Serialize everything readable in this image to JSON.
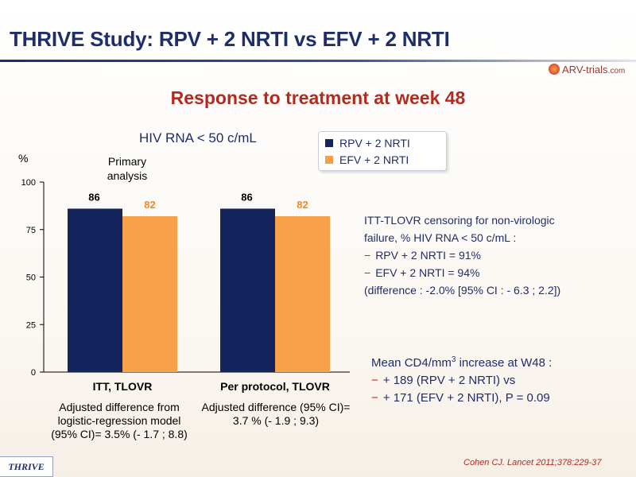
{
  "header": {
    "title": "THRIVE Study: RPV + 2 NRTI vs EFV + 2 NRTI",
    "logo_text": "ARV-trials",
    "logo_domain": ".com"
  },
  "subtitle": "Response to treatment at week 48",
  "chart_data": {
    "type": "bar",
    "title": "HIV RNA < 50 c/mL",
    "ylabel": "%",
    "ylim": [
      0,
      100
    ],
    "yticks": [
      0,
      25,
      50,
      75,
      100
    ],
    "annotation": "Primary analysis",
    "categories": [
      "ITT, TLOVR",
      "Per protocol, TLOVR"
    ],
    "series": [
      {
        "name": "RPV + 2 NRTI",
        "values": [
          86,
          86
        ],
        "color": "#14245c",
        "label_color": "#000000"
      },
      {
        "name": "EFV + 2 NRTI",
        "values": [
          82,
          82
        ],
        "color": "#f7a14a",
        "label_color": "#f08a24"
      }
    ],
    "legend_position": "top-right",
    "grid": false,
    "notes": [
      "Adjusted difference from logistic-regression model (95% CI)= 3.5% (- 1.7 ; 8.8)",
      "Adjusted difference (95% CI)= 3.7 % (- 1.9 ; 9.3)"
    ]
  },
  "itt_censoring": {
    "line1": "ITT-TLOVR censoring for non-virologic",
    "line2": "failure, % HIV RNA < 50 c/mL :",
    "item1": "RPV + 2 NRTI = 91%",
    "item2": "EFV + 2 NRTI = 94%",
    "difference": "(difference : -2.0% [95% CI : - 6.3 ; 2.2])"
  },
  "cd4": {
    "heading_pre": "Mean CD4/mm",
    "heading_sup": "3",
    "heading_post": " increase at W48 :",
    "item1": "+ 189 (RPV + 2 NRTI) vs",
    "item2": "+ 171 (EFV + 2 NRTI), P = 0.09"
  },
  "footer": {
    "study_tag": "THRIVE",
    "citation": "Cohen CJ. Lancet 2011;378:229-37"
  },
  "colors": {
    "title": "#1f2d6b",
    "subtitle": "#b22b1e",
    "rpv": "#14245c",
    "efv": "#f7a14a"
  }
}
